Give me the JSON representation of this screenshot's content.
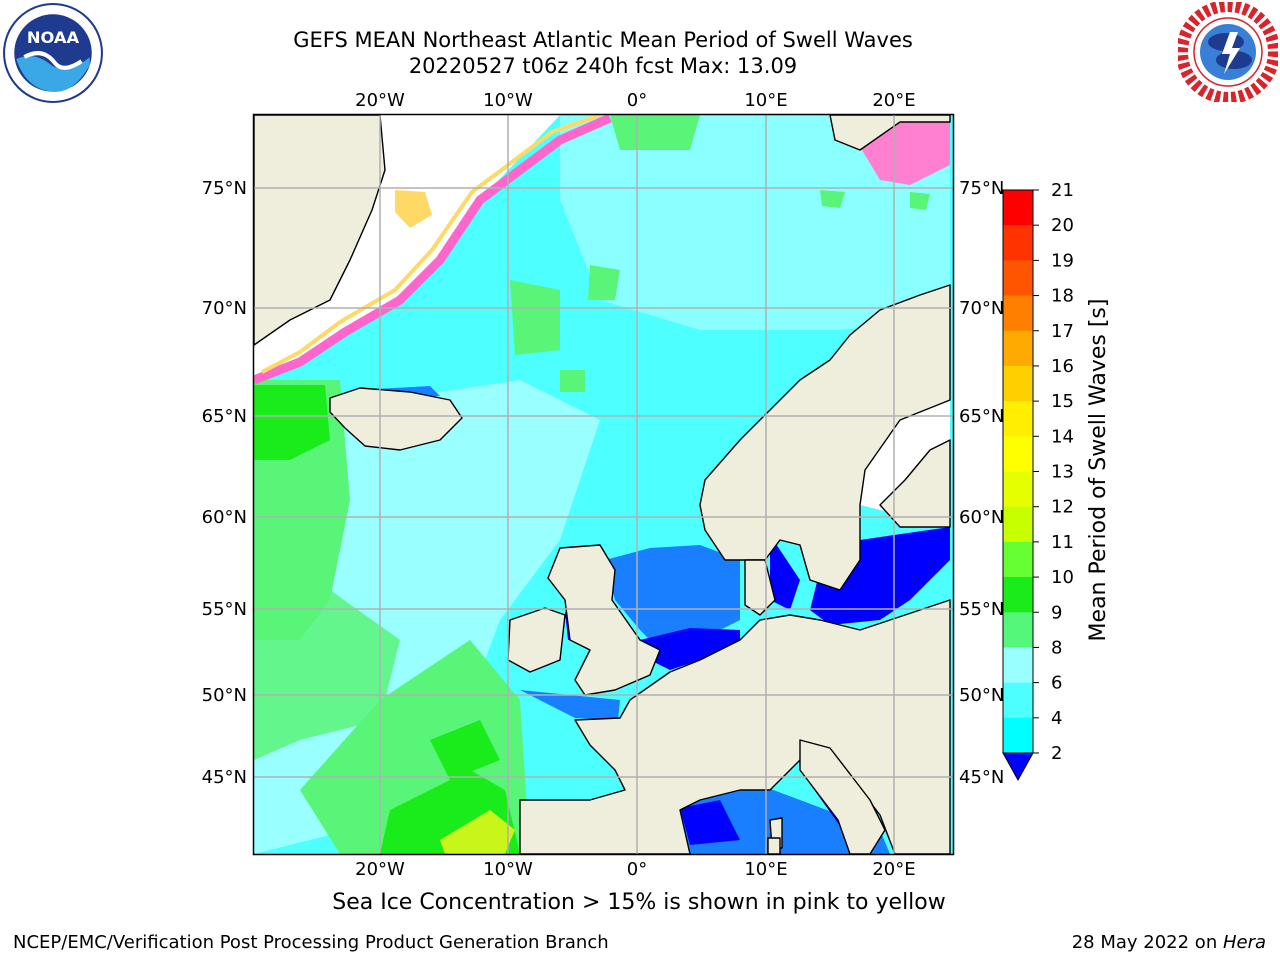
{
  "header": {
    "title_line1": "GEFS MEAN Northeast Atlantic Mean Period of Swell Waves",
    "title_line2": "20220527 t06z 240h fcst   Max: 13.09"
  },
  "logos": {
    "left": "noaa-logo",
    "right": "nws-logo"
  },
  "map": {
    "lon_labels": [
      "20°W",
      "10°W",
      "0°",
      "10°E",
      "20°E"
    ],
    "lat_labels": [
      "75°N",
      "70°N",
      "65°N",
      "60°N",
      "55°N",
      "50°N",
      "45°N"
    ],
    "colors": {
      "land": "#efeddc",
      "ocean_base": "#4dffff",
      "ocean_light": "#99ffff",
      "green_mid": "#59f579",
      "green_dark": "#1aeb1a",
      "yellow_green": "#c8f51a",
      "coastal_blue": "#1a7fff",
      "deep_blue": "#0000ff",
      "ice_pink": "#ff66cc",
      "ice_yellow": "#ffd966",
      "gridline": "#b0b0b0"
    }
  },
  "colorbar": {
    "label": "Mean Period of Swell Waves [s]",
    "ticks": [
      "21",
      "20",
      "19",
      "18",
      "17",
      "16",
      "15",
      "14",
      "13",
      "12",
      "11",
      "10",
      "9",
      "8",
      "6",
      "4",
      "2"
    ],
    "colors": [
      "#ff0000",
      "#ff3300",
      "#ff5500",
      "#ff7f00",
      "#ffaa00",
      "#ffd000",
      "#ffee00",
      "#ffff00",
      "#e6ff00",
      "#c8ff00",
      "#66ff33",
      "#1aeb1a",
      "#55f77a",
      "#99ffff",
      "#4dffff",
      "#00ffff",
      "#0088ff",
      "#0000ff"
    ]
  },
  "footer": {
    "ice_note": "Sea Ice Concentration > 15% is shown in pink to yellow",
    "credit": "NCEP/EMC/Verification Post Processing Product Generation Branch",
    "date_prefix": "28 May 2022 on ",
    "date_machine": "Hera"
  }
}
